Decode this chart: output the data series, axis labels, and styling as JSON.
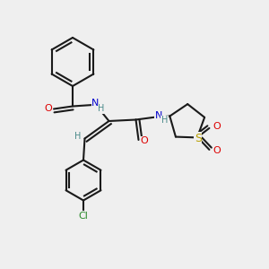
{
  "bg_color": "#efefef",
  "line_color": "#1a1a1a",
  "bond_width": 1.5,
  "atom_colors": {
    "O": "#dd0000",
    "N": "#0000cc",
    "S": "#b8a000",
    "Cl": "#2a8a2a",
    "H": "#4a8a8a",
    "C": "#1a1a1a"
  }
}
